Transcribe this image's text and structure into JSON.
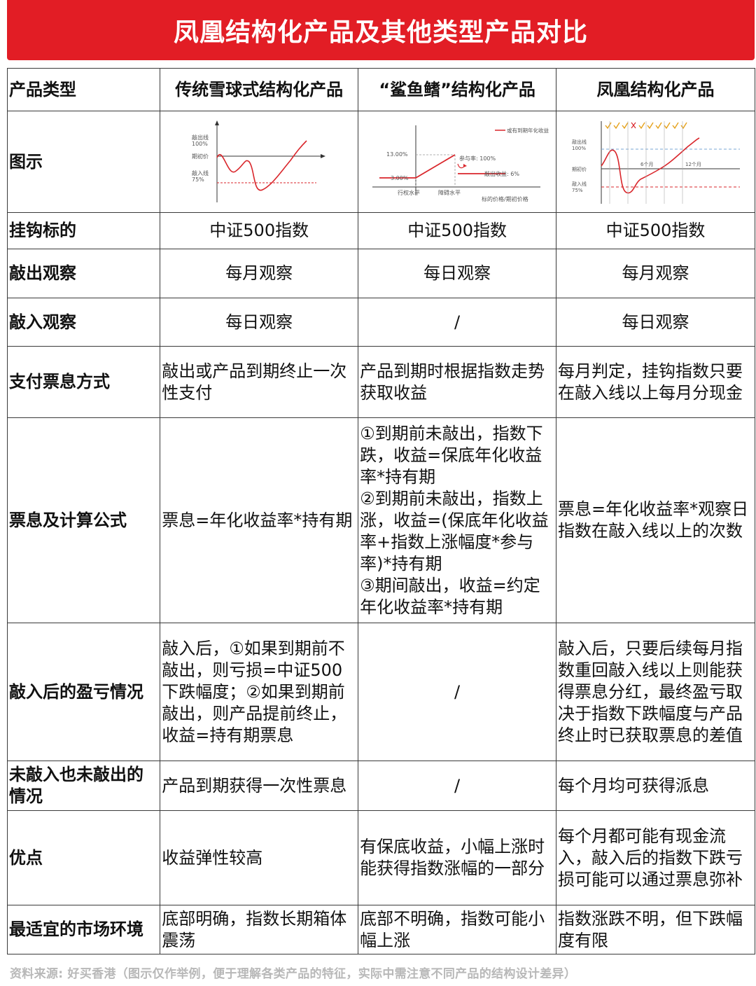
{
  "title": "凤凰结构化产品及其他类型产品对比",
  "header": {
    "col0": "产品类型",
    "col1": "传统雪球式结构化产品",
    "col2": "“鲨鱼鳍”结构化产品",
    "col3": "凤凰结构化产品"
  },
  "rows": {
    "diagram": {
      "label": "图示"
    },
    "underlying": {
      "label": "挂钩标的",
      "c1": "中证500指数",
      "c2": "中证500指数",
      "c3": "中证500指数"
    },
    "knockout": {
      "label": "敲出观察",
      "c1": "每月观察",
      "c2": "每日观察",
      "c3": "每月观察"
    },
    "knockin": {
      "label": "敲入观察",
      "c1": "每日观察",
      "c2": "/",
      "c3": "每日观察"
    },
    "payment": {
      "label": "支付票息方式",
      "c1": "敲出或产品到期终止一次性支付",
      "c2": "产品到期时根据指数走势获取收益",
      "c3": "每月判定，挂钩指数只要在敲入线以上每月分现金"
    },
    "formula": {
      "label": "票息及计算公式",
      "c1": "票息=年化收益率*持有期",
      "c2": "①到期前未敲出，指数下跌，收益=保底年化收益率*持有期\n②到期前未敲出，指数上涨，收益=(保底年化收益率+指数上涨幅度*参与率)*持有期\n③期间敲出，收益=约定年化收益率*持有期",
      "c3": "票息=年化收益率*观察日指数在敲入线以上的次数"
    },
    "after_knockin": {
      "label": "敲入后的盈亏情况",
      "c1": "敲入后，①如果到期前不敲出，则亏损=中证500下跌幅度；②如果到期前敲出，则产品提前终止，收益=持有期票息",
      "c2": "/",
      "c3": "敲入后，只要后续每月指数重回敲入线以上则能获得票息分红，最终盈亏取决于指数下跌幅度与产品终止时已获取票息的差值"
    },
    "neither": {
      "label": "未敲入也未敲出的情况",
      "c1": "产品到期获得一次性票息",
      "c2": "/",
      "c3": "每个月均可获得派息"
    },
    "advantage": {
      "label": "优点",
      "c1": "收益弹性较高",
      "c2": "有保底收益，小幅上涨时能获得指数涨幅的一部分",
      "c3": "每个月都可能有现金流入，敲入后的指数下跌亏损可能可以通过票息弥补"
    },
    "market": {
      "label": "最适宜的市场环境",
      "c1": "底部明确，指数长期箱体震荡",
      "c2": "底部不明确，指数可能小幅上涨",
      "c3": "指数涨跌不明，但下跌幅度有限"
    }
  },
  "diagram_snowball": {
    "ko": "敲出线",
    "ko_pct": "100%",
    "init": "期初价",
    "ki": "敲入线",
    "ki_pct": "75%"
  },
  "diagram_shark": {
    "legend": "或有到期年化收益率",
    "high": "13.00%",
    "low": "3.00%",
    "part": "参与率: 100%",
    "koy": "敲出收益: 6%",
    "strike": "行权水平",
    "barrier": "障碍水平",
    "xlabel": "标的价格/期初价格"
  },
  "diagram_phoenix": {
    "ko": "敲出线",
    "ko_pct": "100%",
    "init": "期初价",
    "ki": "敲入线",
    "ki_pct": "75%",
    "m6": "6个月",
    "m12": "12个月"
  },
  "footer": "资料来源: 好买香港（图示仅作举例，便于理解各类产品的特征，实际中需注意不同产品的结构设计差异）",
  "colors": {
    "banner": "#e21d25",
    "curve": "#d9262b"
  }
}
